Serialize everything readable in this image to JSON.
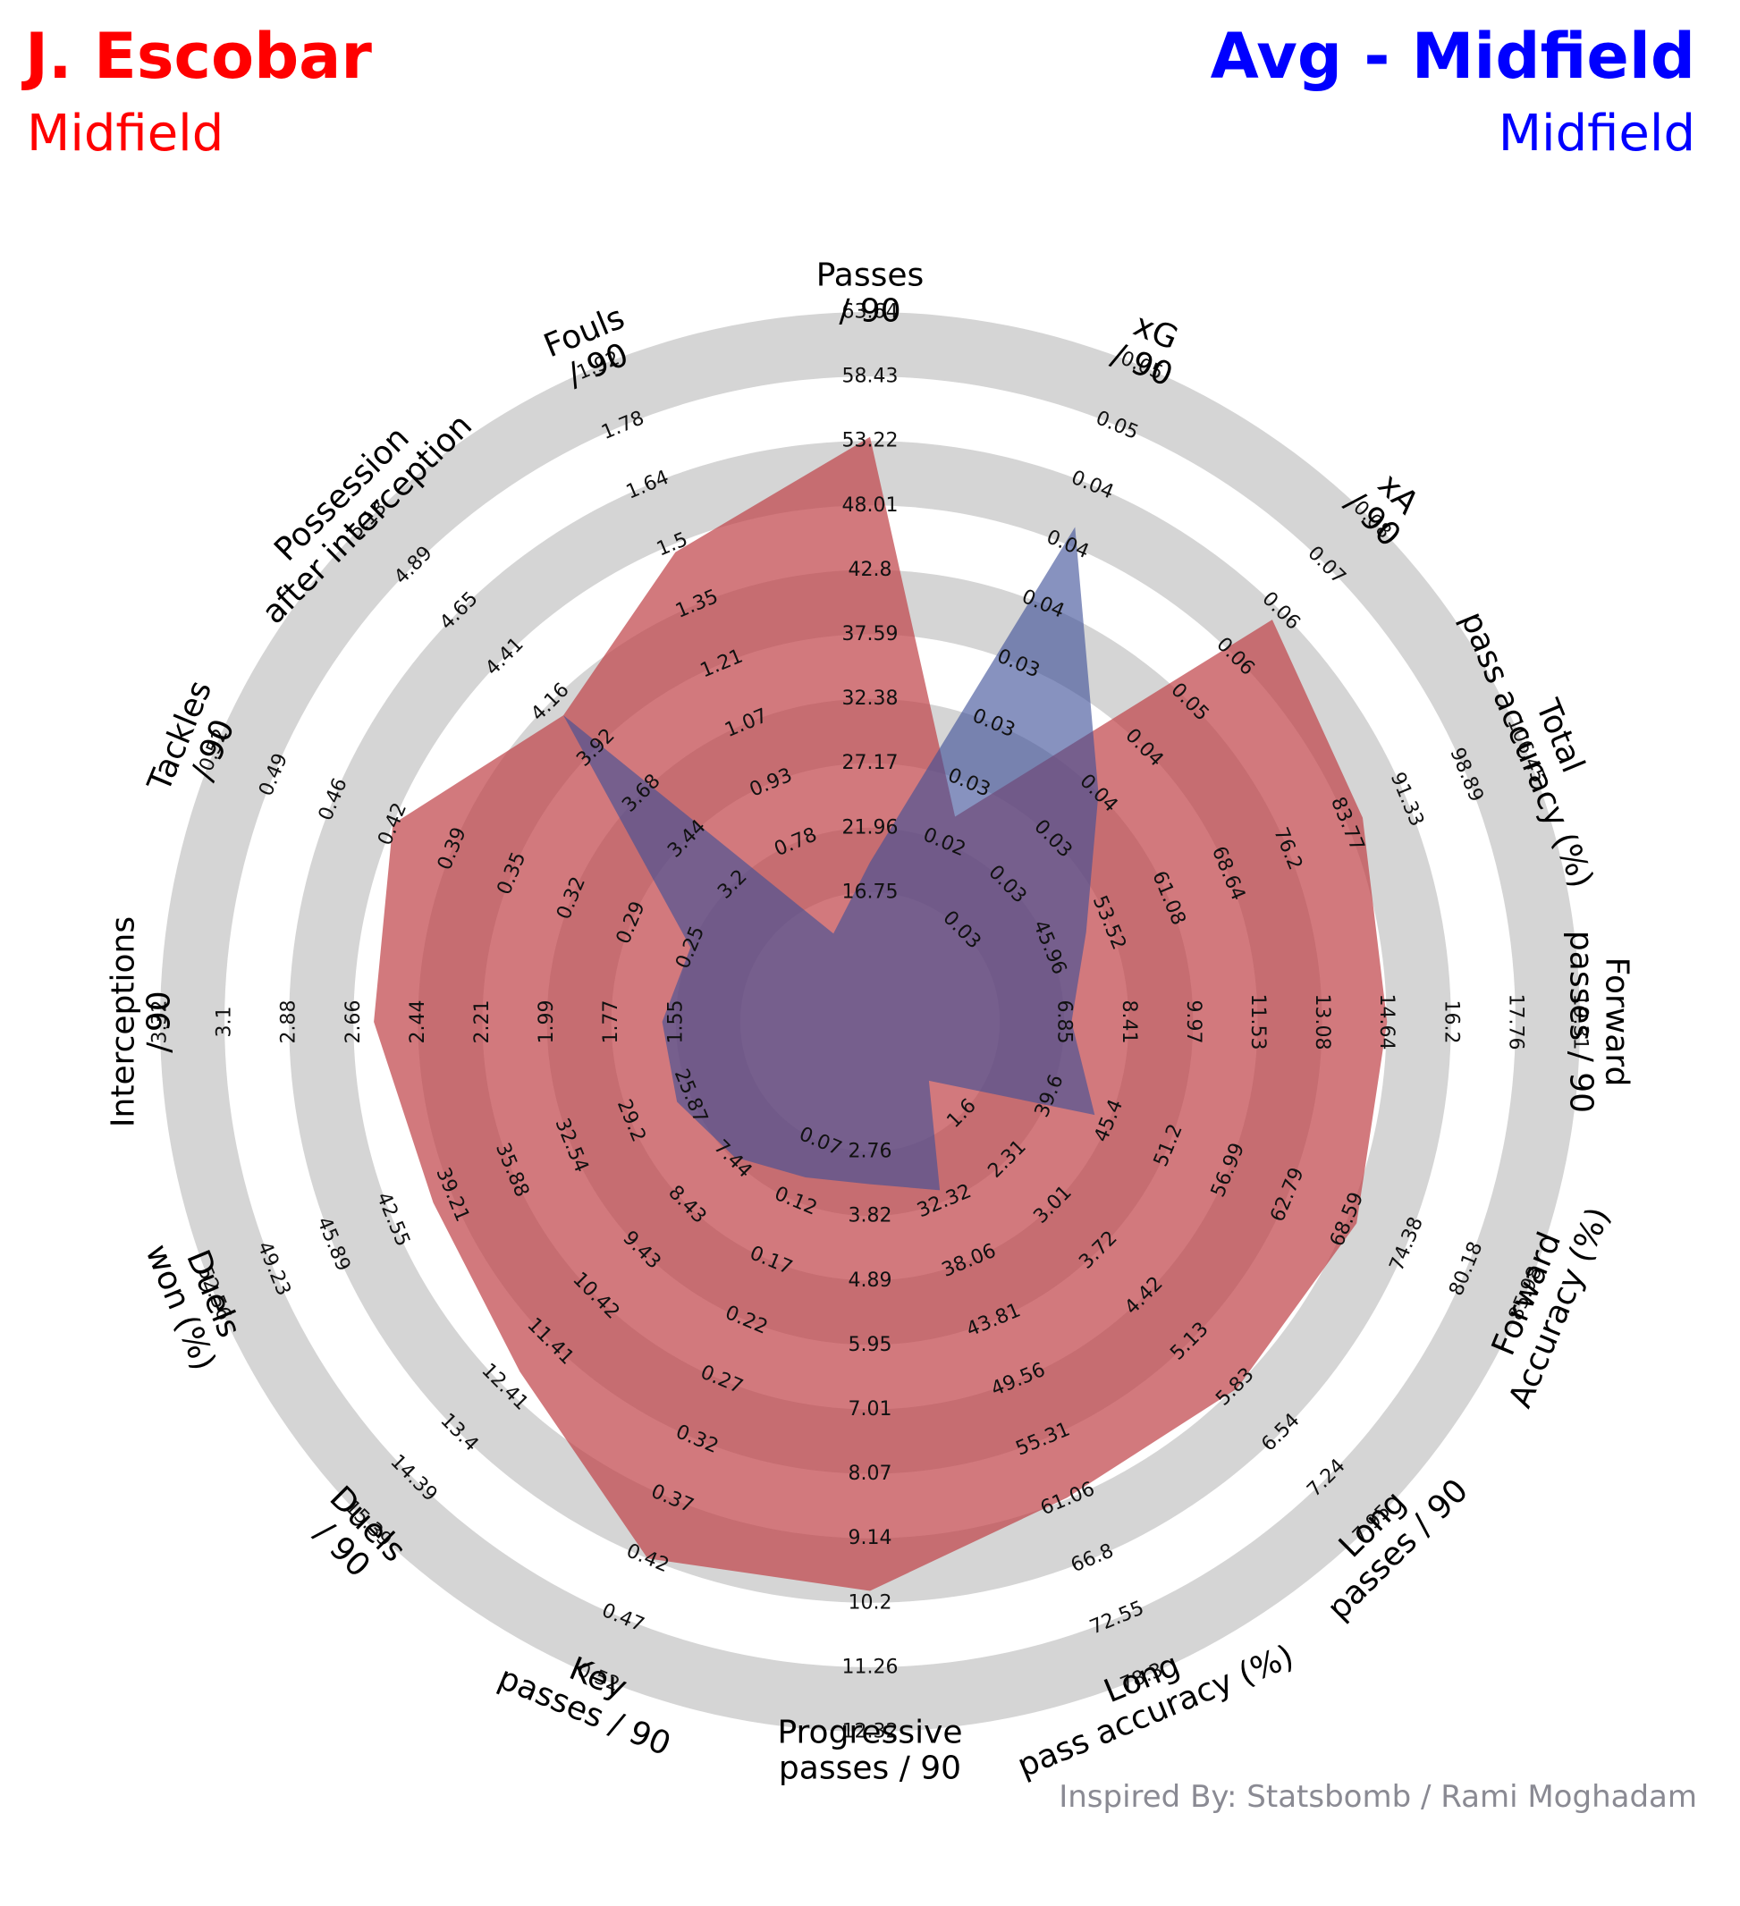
{
  "header": {
    "player1_name": "J. Escobar",
    "player1_position": "Midfield",
    "player2_name": "Avg - Midfield",
    "player2_position": "Midfield",
    "credit": "Inspired By: Statsbomb / Rami Moghadam"
  },
  "colors": {
    "player1": "#ff0000",
    "player2": "#0000ff",
    "player1_fill": "#c1454b",
    "player2_fill": "#3d4f98",
    "ring_light": "#d5d5d5",
    "ring_dark": "#b0b0b0",
    "page_bg": "#ffffff"
  },
  "chart_data": {
    "type": "radar",
    "parameters": [
      {
        "label": [
          "Passes",
          "/ 90"
        ],
        "range": [
          11.35,
          63.64
        ],
        "ticks": [
          "16.75",
          "21.96",
          "27.17",
          "32.38",
          "37.59",
          "42.8",
          "48.01",
          "53.22",
          "58.43",
          "63.64"
        ],
        "player1": 53.5,
        "player2": 19.0
      },
      {
        "label": [
          "xG",
          "/ 90"
        ],
        "range": [
          0.015,
          0.052
        ],
        "ticks": [
          "0.02",
          "0.03",
          "0.03",
          "0.03",
          "0.04",
          "0.04",
          "0.04",
          "0.05",
          "0.05"
        ],
        "player1": 0.024,
        "player2": 0.042
      },
      {
        "label": [
          "xA",
          "/ 90"
        ],
        "range": [
          0.0,
          0.08
        ],
        "ticks": [
          "0.03",
          "0.03",
          "0.03",
          "0.04",
          "0.04",
          "0.05",
          "0.06",
          "0.06",
          "0.07",
          "0.08"
        ],
        "player1": 0.0625,
        "player2": 0.032
      },
      {
        "label": [
          "Total",
          "pass accuracy (%)"
        ],
        "range": [
          30.0,
          106.45
        ],
        "ticks": [
          "45.96",
          "53.52",
          "61.08",
          "68.64",
          "76.2",
          "83.77",
          "91.33",
          "98.89",
          "106.45"
        ],
        "player1": 85.5,
        "player2": 50.0
      },
      {
        "label": [
          "Forward",
          "passes / 90"
        ],
        "range": [
          3.7,
          19.31
        ],
        "ticks": [
          "6.85",
          "8.41",
          "9.97",
          "11.53",
          "13.08",
          "14.64",
          "16.2",
          "17.76",
          "19.31"
        ],
        "player1": 14.64,
        "player2": 7.0
      },
      {
        "label": [
          "Forward",
          "Accuracy (%)"
        ],
        "range": [
          28.0,
          85.98
        ],
        "ticks": [
          "39.6",
          "45.4",
          "51.2",
          "56.99",
          "62.79",
          "68.59",
          "74.38",
          "80.18",
          "85.98"
        ],
        "player1": 69.5,
        "player2": 44.0
      },
      {
        "label": [
          "Long",
          "passes / 90"
        ],
        "range": [
          0.8,
          7.95
        ],
        "ticks": [
          "1.6",
          "2.31",
          "3.01",
          "3.72",
          "4.42",
          "5.13",
          "5.83",
          "6.54",
          "7.24",
          "7.95"
        ],
        "player1": 5.83,
        "player2": 1.0
      },
      {
        "label": [
          "Long",
          "pass accuracy (%)"
        ],
        "range": [
          26.0,
          78.3
        ],
        "ticks": [
          "32.32",
          "38.06",
          "43.81",
          "49.56",
          "55.31",
          "61.06",
          "66.8",
          "72.55",
          "78.3"
        ],
        "player1": 62.5,
        "player2": 35.5
      },
      {
        "label": [
          "Progressive",
          "passes / 90"
        ],
        "range": [
          1.7,
          12.32
        ],
        "ticks": [
          "2.76",
          "3.82",
          "4.89",
          "5.95",
          "7.01",
          "8.07",
          "9.14",
          "10.2",
          "11.26",
          "12.32"
        ],
        "player1": 10.0,
        "player2": 3.3
      },
      {
        "label": [
          "Key",
          "passes / 90"
        ],
        "range": [
          0.02,
          0.52
        ],
        "ticks": [
          "0.07",
          "0.12",
          "0.17",
          "0.22",
          "0.27",
          "0.32",
          "0.37",
          "0.42",
          "0.47",
          "0.52"
        ],
        "player1": 0.42,
        "player2": 0.1
      },
      {
        "label": [
          "Duels",
          "/ 90"
        ],
        "range": [
          6.45,
          15.39
        ],
        "ticks": [
          "7.44",
          "8.43",
          "9.43",
          "10.42",
          "11.41",
          "12.41",
          "13.4",
          "14.39",
          "15.39"
        ],
        "player1": 12.41,
        "player2": 8.2
      },
      {
        "label": [
          "Duels",
          "won (%)"
        ],
        "range": [
          22.5,
          52.56
        ],
        "ticks": [
          "25.87",
          "29.2",
          "32.54",
          "35.88",
          "39.21",
          "42.55",
          "45.89",
          "49.23",
          "52.56"
        ],
        "player1": 41.5,
        "player2": 29.2
      },
      {
        "label": [
          "Interceptions",
          "/ 90"
        ],
        "range": [
          1.33,
          3.32
        ],
        "ticks": [
          "1.55",
          "1.77",
          "1.99",
          "2.21",
          "2.44",
          "2.66",
          "2.88",
          "3.1",
          "3.32"
        ],
        "player1": 2.66,
        "player2": 1.77
      },
      {
        "label": [
          "Tackles",
          "/ 90"
        ],
        "range": [
          0.22,
          0.52
        ],
        "ticks": [
          "0.25",
          "0.29",
          "0.32",
          "0.35",
          "0.39",
          "0.42",
          "0.46",
          "0.49",
          "0.52"
        ],
        "player1": 0.43,
        "player2": 0.28
      },
      {
        "label": [
          "Possession",
          "after interception"
        ],
        "range": [
          2.96,
          5.13
        ],
        "ticks": [
          "3.2",
          "3.44",
          "3.68",
          "3.92",
          "4.16",
          "4.41",
          "4.65",
          "4.89",
          "5.13"
        ],
        "player1": 4.2,
        "player2": 4.2
      },
      {
        "label": [
          "Fouls",
          "/ 90"
        ],
        "range": [
          0.64,
          1.92
        ],
        "ticks": [
          "0.78",
          "0.93",
          "1.07",
          "1.21",
          "1.35",
          "1.5",
          "1.64",
          "1.78",
          "1.92"
        ],
        "player1": 1.52,
        "player2": 0.7
      }
    ],
    "series": [
      {
        "name": "J. Escobar"
      },
      {
        "name": "Avg - Midfield"
      }
    ]
  }
}
